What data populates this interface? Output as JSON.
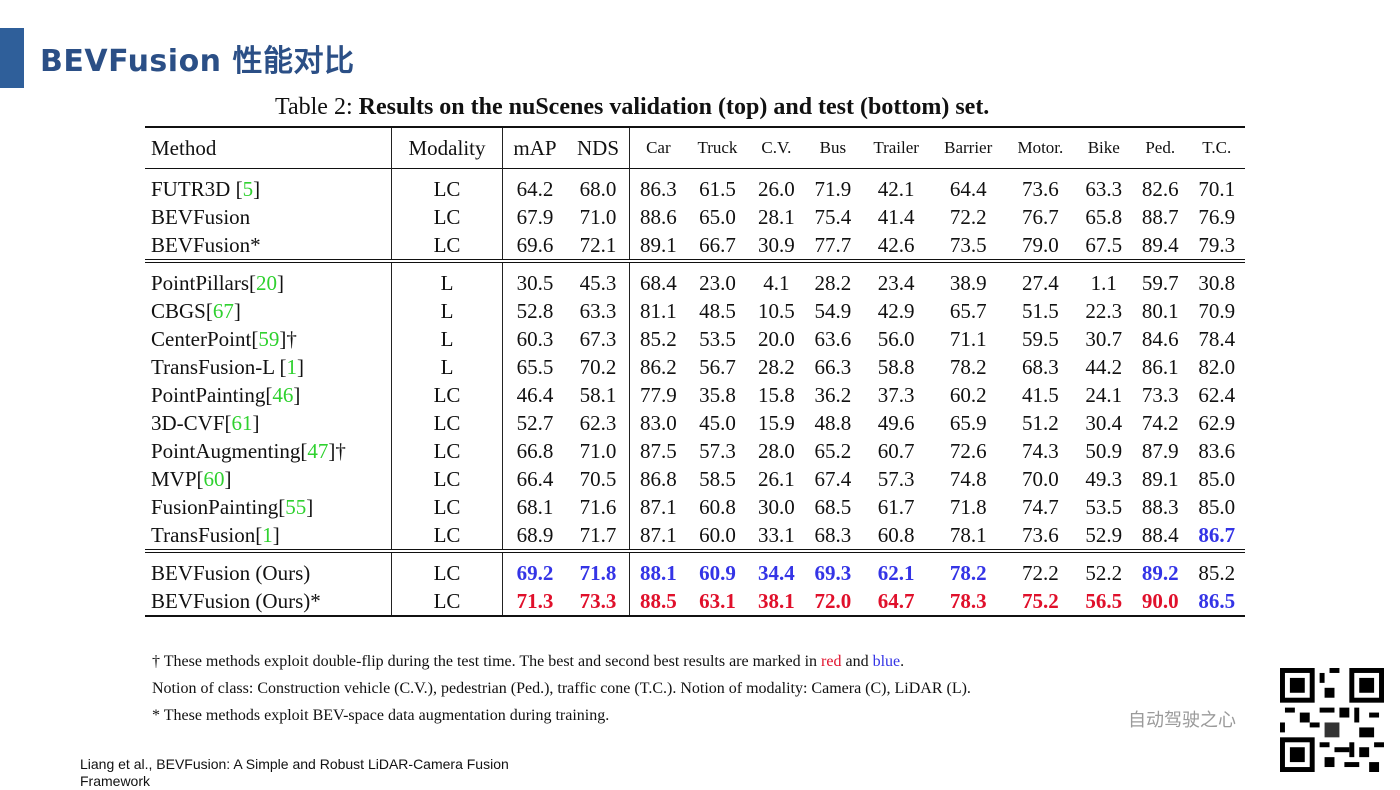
{
  "slide": {
    "title": "BEVFusion 性能对比"
  },
  "caption": {
    "prefix": "Table 2: ",
    "text": "Results on the nuScenes validation (top) and test (bottom) set."
  },
  "headers": {
    "method": "Method",
    "modality": "Modality",
    "map": "mAP",
    "nds": "NDS",
    "classes": [
      "Car",
      "Truck",
      "C.V.",
      "Bus",
      "Trailer",
      "Barrier",
      "Motor.",
      "Bike",
      "Ped.",
      "T.C."
    ]
  },
  "groups": [
    {
      "rows": [
        {
          "name": "FUTR3D [",
          "ref": "5",
          "suffix": "]",
          "mod": "LC",
          "vals": [
            "64.2",
            "68.0",
            "86.3",
            "61.5",
            "26.0",
            "71.9",
            "42.1",
            "64.4",
            "73.6",
            "63.3",
            "82.6",
            "70.1"
          ]
        },
        {
          "name": "BEVFusion",
          "ref": "",
          "suffix": "",
          "mod": "LC",
          "vals": [
            "67.9",
            "71.0",
            "88.6",
            "65.0",
            "28.1",
            "75.4",
            "41.4",
            "72.2",
            "76.7",
            "65.8",
            "88.7",
            "76.9"
          ]
        },
        {
          "name": "BEVFusion*",
          "ref": "",
          "suffix": "",
          "mod": "LC",
          "vals": [
            "69.6",
            "72.1",
            "89.1",
            "66.7",
            "30.9",
            "77.7",
            "42.6",
            "73.5",
            "79.0",
            "67.5",
            "89.4",
            "79.3"
          ]
        }
      ]
    },
    {
      "rows": [
        {
          "name": "PointPillars[",
          "ref": "20",
          "suffix": "]",
          "mod": "L",
          "vals": [
            "30.5",
            "45.3",
            "68.4",
            "23.0",
            "4.1",
            "28.2",
            "23.4",
            "38.9",
            "27.4",
            "1.1",
            "59.7",
            "30.8"
          ]
        },
        {
          "name": "CBGS[",
          "ref": "67",
          "suffix": "]",
          "mod": "L",
          "vals": [
            "52.8",
            "63.3",
            "81.1",
            "48.5",
            "10.5",
            "54.9",
            "42.9",
            "65.7",
            "51.5",
            "22.3",
            "80.1",
            "70.9"
          ]
        },
        {
          "name": "CenterPoint[",
          "ref": "59",
          "suffix": "]†",
          "mod": "L",
          "vals": [
            "60.3",
            "67.3",
            "85.2",
            "53.5",
            "20.0",
            "63.6",
            "56.0",
            "71.1",
            "59.5",
            "30.7",
            "84.6",
            "78.4"
          ]
        },
        {
          "name": "TransFusion-L [",
          "ref": "1",
          "suffix": "]",
          "mod": "L",
          "vals": [
            "65.5",
            "70.2",
            "86.2",
            "56.7",
            "28.2",
            "66.3",
            "58.8",
            "78.2",
            "68.3",
            "44.2",
            "86.1",
            "82.0"
          ]
        },
        {
          "name": "PointPainting[",
          "ref": "46",
          "suffix": "]",
          "mod": "LC",
          "vals": [
            "46.4",
            "58.1",
            "77.9",
            "35.8",
            "15.8",
            "36.2",
            "37.3",
            "60.2",
            "41.5",
            "24.1",
            "73.3",
            "62.4"
          ]
        },
        {
          "name": "3D-CVF[",
          "ref": "61",
          "suffix": "]",
          "mod": "LC",
          "vals": [
            "52.7",
            "62.3",
            "83.0",
            "45.0",
            "15.9",
            "48.8",
            "49.6",
            "65.9",
            "51.2",
            "30.4",
            "74.2",
            "62.9"
          ]
        },
        {
          "name": "PointAugmenting[",
          "ref": "47",
          "suffix": "]†",
          "mod": "LC",
          "vals": [
            "66.8",
            "71.0",
            "87.5",
            "57.3",
            "28.0",
            "65.2",
            "60.7",
            "72.6",
            "74.3",
            "50.9",
            "87.9",
            "83.6"
          ]
        },
        {
          "name": "MVP[",
          "ref": "60",
          "suffix": "]",
          "mod": "LC",
          "vals": [
            "66.4",
            "70.5",
            "86.8",
            "58.5",
            "26.1",
            "67.4",
            "57.3",
            "74.8",
            "70.0",
            "49.3",
            "89.1",
            "85.0"
          ]
        },
        {
          "name": "FusionPainting[",
          "ref": "55",
          "suffix": "]",
          "mod": "LC",
          "vals": [
            "68.1",
            "71.6",
            "87.1",
            "60.8",
            "30.0",
            "68.5",
            "61.7",
            "71.8",
            "74.7",
            "53.5",
            "88.3",
            "85.0"
          ]
        },
        {
          "name": "TransFusion[",
          "ref": "1",
          "suffix": "]",
          "mod": "LC",
          "vals": [
            "68.9",
            "71.7",
            "87.1",
            "60.0",
            "33.1",
            "68.3",
            "60.8",
            "78.1",
            "73.6",
            "52.9",
            "88.4",
            "86.7"
          ],
          "marks": [
            "",
            "",
            "",
            "",
            "",
            "",
            "",
            "",
            "",
            "",
            "",
            "blue"
          ]
        }
      ]
    },
    {
      "rows": [
        {
          "name": "BEVFusion (Ours)",
          "ref": "",
          "suffix": "",
          "mod": "LC",
          "vals": [
            "69.2",
            "71.8",
            "88.1",
            "60.9",
            "34.4",
            "69.3",
            "62.1",
            "78.2",
            "72.2",
            "52.2",
            "89.2",
            "85.2"
          ],
          "marks": [
            "blue",
            "blue",
            "blue",
            "blue",
            "blue",
            "blue",
            "blue",
            "blue",
            "",
            "",
            "blue",
            ""
          ]
        },
        {
          "name": "BEVFusion (Ours)*",
          "ref": "",
          "suffix": "",
          "mod": "LC",
          "vals": [
            "71.3",
            "73.3",
            "88.5",
            "63.1",
            "38.1",
            "72.0",
            "64.7",
            "78.3",
            "75.2",
            "56.5",
            "90.0",
            "86.5"
          ],
          "marks": [
            "red",
            "red",
            "red",
            "red",
            "red",
            "red",
            "red",
            "red",
            "red",
            "red",
            "red",
            "blue"
          ]
        }
      ]
    }
  ],
  "notes": {
    "line1_a": "† These methods exploit double-flip during the test time. The best and second best results are marked in ",
    "line1_red": "red",
    "line1_and": " and ",
    "line1_blue": "blue",
    "line1_end": ".",
    "line2": "Notion of class: Construction vehicle (C.V.), pedestrian (Ped.), traffic cone (T.C.). Notion of modality: Camera (C), LiDAR (L).",
    "line3": "* These methods exploit BEV-space data augmentation during training."
  },
  "watermark": "自动驾驶之心",
  "footer": "Liang et al., BEVFusion: A Simple and Robust LiDAR-Camera Fusion Framework",
  "colors": {
    "red": "#e0102b",
    "blue": "#3434e6",
    "ref_green": "#2fd12f",
    "title_blue": "#2b4f86"
  }
}
